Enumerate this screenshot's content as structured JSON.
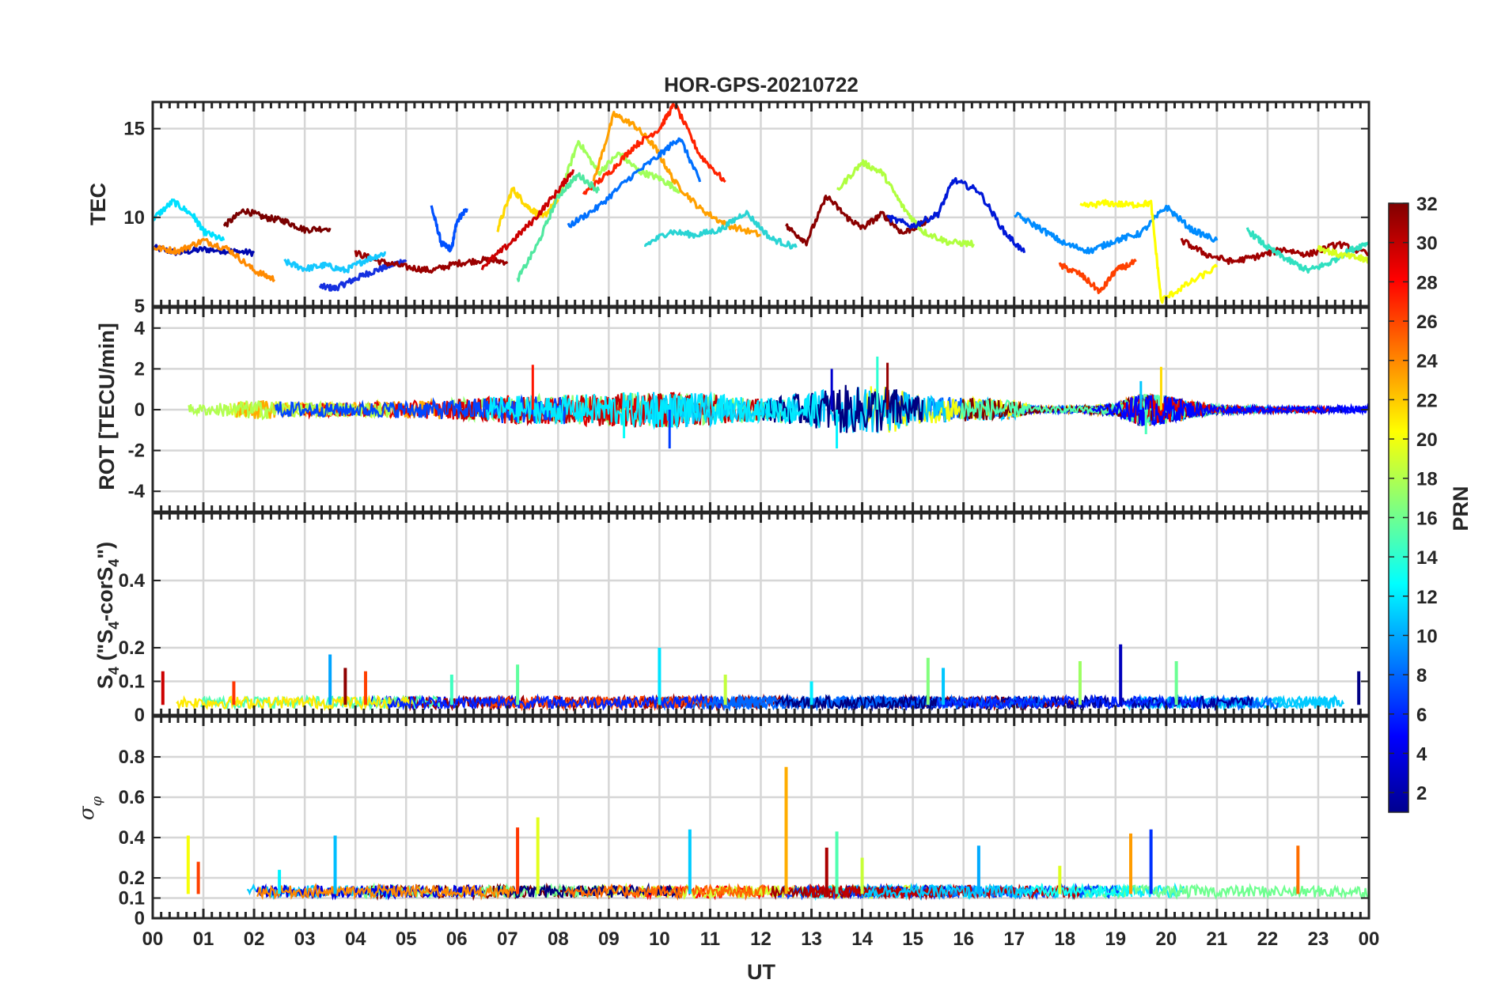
{
  "chart_data": {
    "type": "line",
    "title": "HOR-GPS-20210722",
    "xlabel": "UT",
    "x_tick_labels": [
      "00",
      "01",
      "02",
      "03",
      "04",
      "05",
      "06",
      "07",
      "08",
      "09",
      "10",
      "11",
      "12",
      "13",
      "14",
      "15",
      "16",
      "17",
      "18",
      "19",
      "20",
      "21",
      "22",
      "23",
      "00"
    ],
    "xlim": [
      0,
      24
    ],
    "grid": true,
    "colorbar": {
      "label": "PRN",
      "range": [
        1,
        32
      ],
      "tick_labels": [
        "2",
        "4",
        "6",
        "8",
        "10",
        "12",
        "14",
        "16",
        "18",
        "20",
        "22",
        "24",
        "26",
        "28",
        "30",
        "32"
      ],
      "colormap": "jet"
    },
    "panels": [
      {
        "ylabel": "TEC",
        "ylim": [
          5,
          16.5
        ],
        "y_tick_labels": [
          "5",
          "10",
          "15"
        ],
        "series": [
          {
            "prn": 2,
            "color": "#0008b0",
            "x": [
              0,
              0.5,
              1,
              1.5,
              2
            ],
            "y": [
              8.3,
              8,
              8.2,
              8.1,
              8
            ]
          },
          {
            "prn": 6,
            "color": "#1530e0",
            "x": [
              3.3,
              3.6,
              3.9,
              4.2,
              4.6,
              5
            ],
            "y": [
              6.1,
              6,
              6.4,
              6.8,
              7.2,
              7.6
            ]
          },
          {
            "prn": 8,
            "color": "#0050ff",
            "x": [
              5.5,
              5.7,
              5.9,
              6,
              6.2
            ],
            "y": [
              10.6,
              8.5,
              8.2,
              9.8,
              10.5
            ]
          },
          {
            "prn": 30,
            "color": "#7a0000",
            "x": [
              1.4,
              1.8,
              2.2,
              2.6,
              3,
              3.5
            ],
            "y": [
              9.5,
              10.4,
              10,
              9.8,
              9.3,
              9.4
            ]
          },
          {
            "prn": 31,
            "color": "#9a0000",
            "x": [
              4,
              4.5,
              5,
              5.5,
              6,
              6.5,
              7
            ],
            "y": [
              8,
              7.5,
              7.2,
              7,
              7.4,
              7.6,
              7.5
            ]
          },
          {
            "prn": 14,
            "color": "#00e0ff",
            "x": [
              0,
              0.4,
              0.8,
              1,
              1.4
            ],
            "y": [
              9.9,
              10.9,
              10.1,
              9.2,
              8.7
            ]
          },
          {
            "prn": 12,
            "color": "#15c8ff",
            "x": [
              2.6,
              3,
              3.4,
              3.8,
              4.2,
              4.6
            ],
            "y": [
              7.5,
              7.1,
              7.3,
              7,
              7.6,
              8
            ]
          },
          {
            "prn": 24,
            "color": "#ff8a00",
            "x": [
              0,
              0.5,
              1,
              1.5,
              2,
              2.4
            ],
            "y": [
              8.3,
              8.1,
              8.7,
              8.2,
              7,
              6.5
            ]
          },
          {
            "prn": 21,
            "color": "#ffd800",
            "x": [
              6.8,
              7.1,
              7.4,
              7.7,
              8
            ],
            "y": [
              9.3,
              11.6,
              10.6,
              10,
              11
            ]
          },
          {
            "prn": 17,
            "color": "#a0ff5a",
            "x": [
              8,
              8.4,
              8.8,
              9.2,
              9.6,
              10,
              10.4
            ],
            "y": [
              11,
              14.3,
              12.5,
              13.6,
              12.6,
              12.2,
              11.5
            ]
          },
          {
            "prn": 23,
            "color": "#ffa000",
            "x": [
              8.7,
              9.1,
              9.5,
              9.9,
              10.3,
              10.8,
              11.3,
              12
            ],
            "y": [
              12,
              15.8,
              15.2,
              14,
              12,
              10.5,
              9.6,
              9
            ]
          },
          {
            "prn": 27,
            "color": "#ff2200",
            "x": [
              8.5,
              9,
              9.5,
              10,
              10.3,
              10.8,
              11.3
            ],
            "y": [
              11.3,
              12.5,
              14,
              15,
              16.4,
              13.5,
              12
            ]
          },
          {
            "prn": 9,
            "color": "#0070ff",
            "x": [
              8.2,
              8.8,
              9.4,
              10,
              10.4,
              10.8
            ],
            "y": [
              9.5,
              10.6,
              12.2,
              13.5,
              14.5,
              12
            ]
          },
          {
            "prn": 13,
            "color": "#2ad4d4",
            "x": [
              9.7,
              10.2,
              10.7,
              11.2,
              11.7,
              12.2,
              12.7
            ],
            "y": [
              8.4,
              9.2,
              9,
              9.3,
              10.3,
              8.8,
              8.3
            ]
          },
          {
            "prn": 16,
            "color": "#50e8a0",
            "x": [
              7.2,
              7.6,
              8,
              8.4,
              8.8
            ],
            "y": [
              6.5,
              8.5,
              11.2,
              12.4,
              11.5
            ]
          },
          {
            "prn": 29,
            "color": "#cc0000",
            "x": [
              6.5,
              7,
              7.5,
              8,
              8.3
            ],
            "y": [
              7.2,
              8.4,
              9.8,
              11.5,
              12.7
            ]
          },
          {
            "prn": 31,
            "color": "#8a0000",
            "x": [
              12.5,
              12.9,
              13.3,
              13.7,
              14,
              14.4,
              14.8,
              15.3
            ],
            "y": [
              9.5,
              8.6,
              11.2,
              10,
              9.4,
              10.2,
              9.1,
              9.8
            ]
          },
          {
            "prn": 18,
            "color": "#b0ff40",
            "x": [
              13.5,
              14,
              14.4,
              14.8,
              15.2,
              15.7,
              16.2
            ],
            "y": [
              11.5,
              13.1,
              12.5,
              10.6,
              9.2,
              8.6,
              8.5
            ]
          },
          {
            "prn": 3,
            "color": "#0018d8",
            "x": [
              14.5,
              15,
              15.5,
              15.8,
              16.3,
              16.8,
              17.2
            ],
            "y": [
              10,
              9.5,
              10.2,
              12.1,
              11.5,
              9.2,
              8
            ]
          },
          {
            "prn": 10,
            "color": "#008cff",
            "x": [
              17,
              17.5,
              18,
              18.5,
              19,
              19.5,
              20,
              20.5,
              21
            ],
            "y": [
              10.2,
              9.4,
              8.5,
              8.1,
              8.7,
              9.1,
              10.6,
              9.3,
              8.7
            ]
          },
          {
            "prn": 26,
            "color": "#ff4000",
            "x": [
              17.9,
              18.3,
              18.7,
              19,
              19.4
            ],
            "y": [
              7.3,
              6.8,
              5.8,
              7,
              7.5
            ]
          },
          {
            "prn": 20,
            "color": "#ffff00",
            "x": [
              18.3,
              18.8,
              19.3,
              19.7,
              19.9,
              20.4,
              21
            ],
            "y": [
              10.6,
              10.8,
              10.7,
              10.8,
              5.3,
              6.2,
              7.2
            ]
          },
          {
            "prn": 30,
            "color": "#a00000",
            "x": [
              20.3,
              20.8,
              21.3,
              21.8,
              22.3,
              22.8,
              23.4,
              24
            ],
            "y": [
              8.7,
              7.9,
              7.5,
              7.8,
              8.2,
              7.9,
              8.5,
              7.9
            ]
          },
          {
            "prn": 14,
            "color": "#30e0c0",
            "x": [
              21.6,
              22,
              22.4,
              22.8,
              23.2,
              23.6,
              24
            ],
            "y": [
              9.3,
              8.3,
              7.6,
              7,
              7.4,
              8.1,
              8.6
            ]
          },
          {
            "prn": 19,
            "color": "#d8ff20",
            "x": [
              23,
              23.4,
              23.8,
              24
            ],
            "y": [
              8.3,
              7.9,
              7.7,
              7.6
            ]
          }
        ]
      },
      {
        "ylabel": "ROT [TECU/min]",
        "ylim": [
          -5,
          5
        ],
        "y_tick_labels": [
          "-4",
          "-2",
          "0",
          "2",
          "4"
        ],
        "activity_envelope": {
          "x": [
            0,
            1,
            2,
            3,
            4,
            5,
            6,
            7,
            8,
            9,
            10,
            11,
            12,
            13,
            13.5,
            14,
            14.5,
            15,
            16,
            17,
            17.5,
            18,
            19,
            19.5,
            20,
            20.5,
            21,
            22,
            23,
            24
          ],
          "amplitude": [
            0.4,
            0.4,
            0.7,
            0.5,
            0.5,
            0.6,
            0.7,
            1,
            1,
            1.2,
            1.3,
            1.1,
            0.8,
            1.2,
            1.8,
            1.6,
            1.8,
            1,
            0.9,
            0.6,
            0.2,
            0.2,
            0.4,
            1.2,
            1,
            0.6,
            0.3,
            0.2,
            0.2,
            0.3
          ]
        },
        "peaks": [
          [
            7.5,
            2.2
          ],
          [
            9.3,
            -1.4
          ],
          [
            10.2,
            -1.9
          ],
          [
            13.4,
            2
          ],
          [
            13.5,
            -1.9
          ],
          [
            14.3,
            2.6
          ],
          [
            14.5,
            2.3
          ],
          [
            19.5,
            1.4
          ],
          [
            19.9,
            2.1
          ],
          [
            19.6,
            -1.2
          ]
        ]
      },
      {
        "ylabel": "S₄ (\"S₄-corS₄\")",
        "ylabel_parts": [
          "S",
          "4",
          " (\"S",
          "4",
          "-corS",
          "4",
          "\")"
        ],
        "ylim": [
          0,
          0.6
        ],
        "y_tick_labels": [
          "0",
          "0.1",
          "0.2",
          "0.4"
        ],
        "y_ticks": [
          0,
          0.1,
          0.2,
          0.4
        ],
        "baseline_level": 0.03,
        "peaks": [
          [
            0.2,
            0.13
          ],
          [
            1.6,
            0.1
          ],
          [
            3.5,
            0.18
          ],
          [
            3.8,
            0.14
          ],
          [
            4.2,
            0.13
          ],
          [
            5.9,
            0.12
          ],
          [
            7.2,
            0.15
          ],
          [
            10,
            0.2
          ],
          [
            11.3,
            0.12
          ],
          [
            13,
            0.1
          ],
          [
            15.3,
            0.17
          ],
          [
            15.6,
            0.14
          ],
          [
            18.3,
            0.16
          ],
          [
            19.1,
            0.21
          ],
          [
            20.2,
            0.16
          ],
          [
            23.8,
            0.13
          ]
        ]
      },
      {
        "ylabel": "σφ",
        "ylabel_parts": [
          "σ",
          "φ"
        ],
        "ylim": [
          0,
          1
        ],
        "y_tick_labels": [
          "0",
          "0.1",
          "0.2",
          "0.4",
          "0.6",
          "0.8"
        ],
        "y_ticks": [
          0,
          0.1,
          0.2,
          0.4,
          0.6,
          0.8
        ],
        "baseline_level": 0.12,
        "peaks": [
          [
            0.7,
            0.41
          ],
          [
            0.9,
            0.28
          ],
          [
            2.5,
            0.24
          ],
          [
            3.6,
            0.41
          ],
          [
            7.2,
            0.45
          ],
          [
            7.6,
            0.5
          ],
          [
            10.6,
            0.44
          ],
          [
            12.5,
            0.75
          ],
          [
            13.3,
            0.35
          ],
          [
            13.5,
            0.43
          ],
          [
            14,
            0.3
          ],
          [
            16.3,
            0.36
          ],
          [
            17.9,
            0.26
          ],
          [
            19.3,
            0.42
          ],
          [
            19.7,
            0.44
          ],
          [
            22.6,
            0.36
          ]
        ]
      }
    ]
  }
}
